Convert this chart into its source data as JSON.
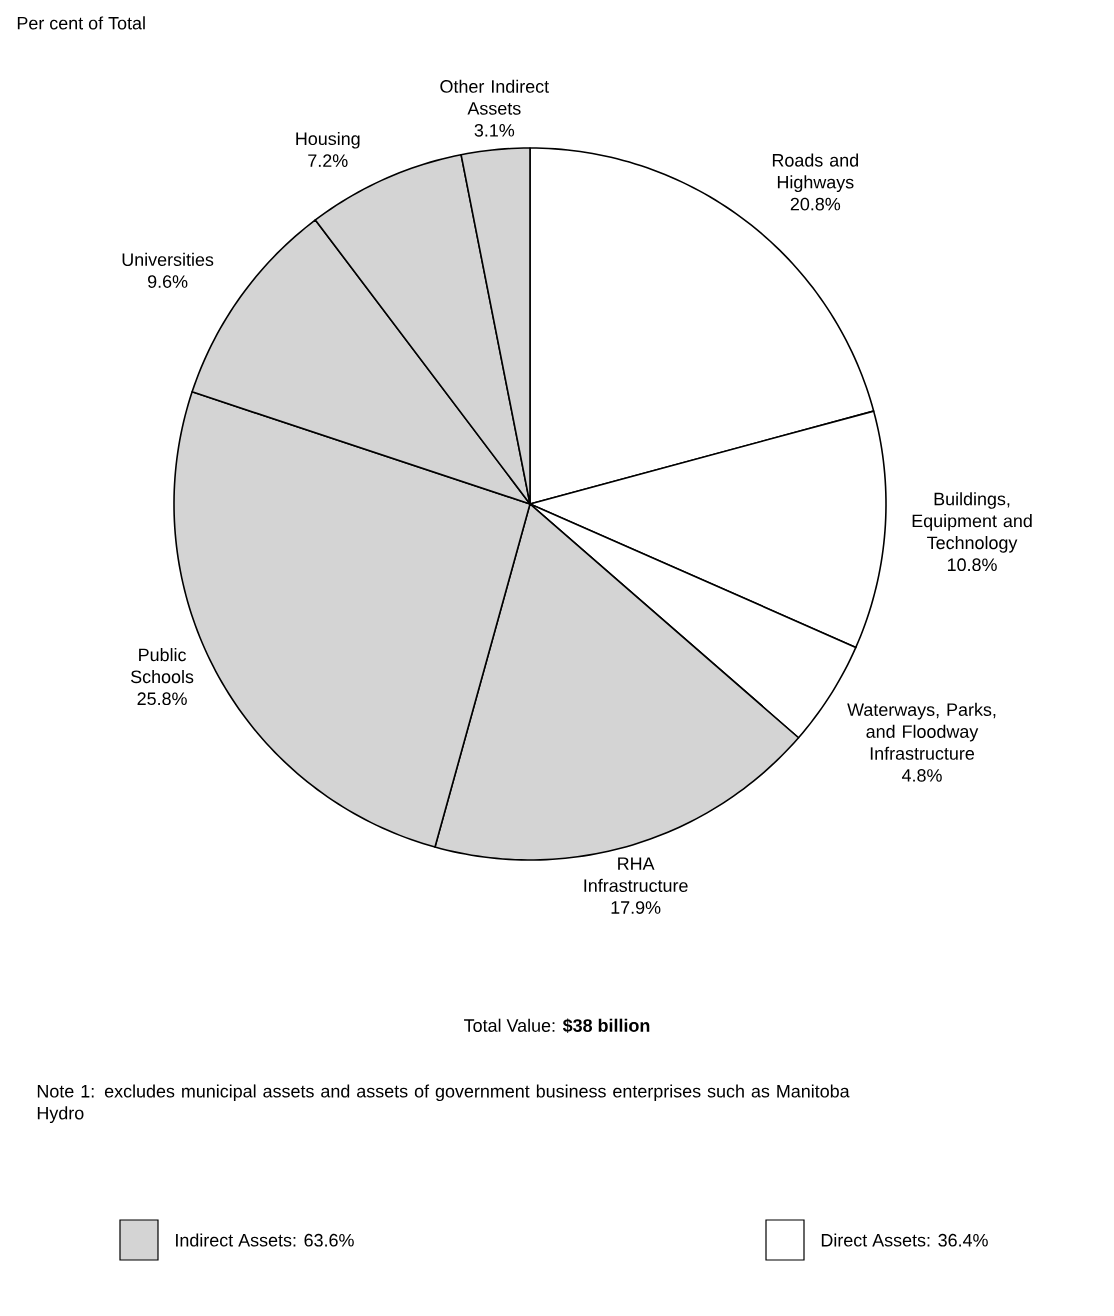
{
  "chart_data": {
    "type": "pie",
    "title": "Per cent of Total",
    "categories": [
      "Roads and Highways",
      "Buildings, Equipment and Technology",
      "Waterways, Parks, and Floodway Infrastructure",
      "RHA Infrastructure",
      "Public Schools",
      "Universities",
      "Housing",
      "Other Indirect Assets"
    ],
    "values": [
      20.8,
      10.8,
      4.8,
      17.9,
      25.8,
      9.6,
      7.2,
      3.1
    ],
    "colors": [
      "#ffffff",
      "#ffffff",
      "#ffffff",
      "#d4d4d4",
      "#d4d4d4",
      "#d4d4d4",
      "#d4d4d4",
      "#d4d4d4"
    ],
    "value_labels": [
      "20.8%",
      "10.8%",
      "4.8%",
      "17.9%",
      "25.8%",
      "9.6%",
      "7.2%",
      "3.1%"
    ],
    "annotations": [
      "Total Value: **$38 billion**",
      "Note 1: excludes municipal assets and assets of government business enterprises such as Manitoba Hydro",
      "Indirect Assets: 63.6%",
      "Direct Assets: 36.4%"
    ]
  }
}
